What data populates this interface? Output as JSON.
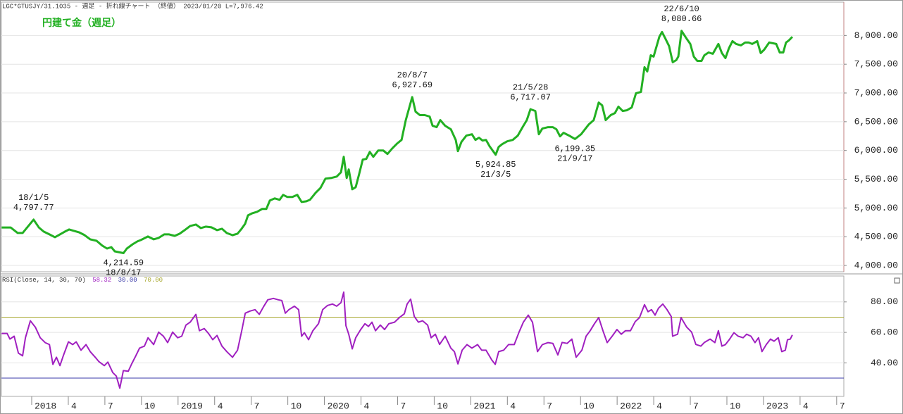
{
  "chart_data": [
    {
      "type": "line",
      "header": "LGC*GTUSJY/31.1035 - 週足 - 折れ線チャート （終値）  2023/01/20 L=7,976.42",
      "title": "円建て金（週足）",
      "color": "#22b022",
      "xlim": [
        2017.793,
        2023.549
      ],
      "ylim": [
        3890,
        8580
      ],
      "grid": true,
      "yticks": [
        {
          "value": 4000,
          "label": "4,000.00"
        },
        {
          "value": 4500,
          "label": "4,500.00"
        },
        {
          "value": 5000,
          "label": "5,000.00"
        },
        {
          "value": 5500,
          "label": "5,500.00"
        },
        {
          "value": 6000,
          "label": "6,000.00"
        },
        {
          "value": 6500,
          "label": "6,500.00"
        },
        {
          "value": 7000,
          "label": "7,000.00"
        },
        {
          "value": 7500,
          "label": "7,500.00"
        },
        {
          "value": 8000,
          "label": "8,000.00"
        }
      ],
      "x": [
        2017.794,
        2017.856,
        2017.904,
        2017.938,
        2018.013,
        2018.049,
        2018.082,
        2018.121,
        2018.159,
        2018.193,
        2018.227,
        2018.256,
        2018.289,
        2018.323,
        2018.361,
        2018.4,
        2018.443,
        2018.482,
        2018.515,
        2018.544,
        2018.568,
        2018.627,
        2018.65,
        2018.689,
        2018.722,
        2018.746,
        2018.794,
        2018.833,
        2018.867,
        2018.905,
        2018.939,
        2018.977,
        2019.011,
        2019.045,
        2019.083,
        2019.122,
        2019.155,
        2019.189,
        2019.228,
        2019.266,
        2019.3,
        2019.333,
        2019.372,
        2019.406,
        2019.434,
        2019.458,
        2019.478,
        2019.507,
        2019.54,
        2019.574,
        2019.603,
        2019.627,
        2019.661,
        2019.694,
        2019.718,
        2019.747,
        2019.781,
        2019.815,
        2019.844,
        2019.877,
        2019.901,
        2019.94,
        2019.973,
        2020.007,
        2020.046,
        2020.084,
        2020.113,
        2020.132,
        2020.152,
        2020.166,
        2020.19,
        2020.214,
        2020.238,
        2020.262,
        2020.286,
        2020.31,
        2020.334,
        2020.368,
        2020.402,
        2020.431,
        2020.464,
        2020.498,
        2020.527,
        2020.556,
        2020.6,
        2020.623,
        2020.652,
        2020.686,
        2020.719,
        2020.739,
        2020.767,
        2020.792,
        2020.825,
        2020.864,
        2020.897,
        2020.912,
        2020.936,
        2020.97,
        2021.008,
        2021.032,
        2021.056,
        2021.08,
        2021.104,
        2021.128,
        2021.17,
        2021.191,
        2021.215,
        2021.249,
        2021.287,
        2021.321,
        2021.354,
        2021.383,
        2021.408,
        2021.441,
        2021.465,
        2021.489,
        2021.528,
        2021.561,
        2021.585,
        2021.61,
        2021.634,
        2021.672,
        2021.712,
        2021.754,
        2021.807,
        2021.84,
        2021.874,
        2021.898,
        2021.922,
        2021.956,
        2021.985,
        2022.009,
        2022.038,
        2022.067,
        2022.1,
        2022.129,
        2022.163,
        2022.187,
        2022.206,
        2022.23,
        2022.249,
        2022.288,
        2022.307,
        2022.331,
        2022.355,
        2022.38,
        2022.404,
        2022.418,
        2022.44,
        2022.476,
        2022.5,
        2022.524,
        2022.548,
        2022.577,
        2022.596,
        2022.625,
        2022.654,
        2022.692,
        2022.716,
        2022.74,
        2022.764,
        2022.788,
        2022.813,
        2022.846,
        2022.875,
        2022.899,
        2022.923,
        2022.957,
        2022.981,
        2023.005,
        2023.039,
        2023.087,
        2023.111,
        2023.135,
        2023.154,
        2023.173,
        2023.197
      ],
      "values": [
        4660,
        4660,
        4565,
        4565,
        4797.77,
        4660,
        4589,
        4540,
        4491,
        4540,
        4589,
        4626,
        4601,
        4577,
        4528,
        4454,
        4429,
        4344,
        4294,
        4319,
        4245,
        4214.59,
        4294,
        4368,
        4418,
        4442,
        4503,
        4454,
        4479,
        4540,
        4540,
        4515,
        4552,
        4614,
        4687,
        4712,
        4650,
        4675,
        4663,
        4614,
        4638,
        4564,
        4527,
        4552,
        4638,
        4724,
        4871,
        4908,
        4933,
        4982,
        4982,
        5129,
        5166,
        5141,
        5227,
        5190,
        5190,
        5227,
        5104,
        5116,
        5141,
        5264,
        5349,
        5509,
        5521,
        5546,
        5620,
        5890,
        5521,
        5669,
        5325,
        5362,
        5595,
        5841,
        5853,
        5976,
        5890,
        6000,
        6000,
        5939,
        6037,
        6123,
        6184,
        6528,
        6927.69,
        6675,
        6614,
        6614,
        6589,
        6430,
        6405,
        6528,
        6430,
        6368,
        6184,
        5988,
        6148,
        6258,
        6282,
        6184,
        6221,
        6172,
        6184,
        6074,
        5924.85,
        6061,
        6110,
        6159,
        6184,
        6258,
        6405,
        6528,
        6717.07,
        6687,
        6282,
        6381,
        6405,
        6405,
        6368,
        6245,
        6307,
        6258,
        6199.35,
        6282,
        6454,
        6528,
        6834,
        6785,
        6528,
        6614,
        6650,
        6761,
        6687,
        6699,
        6748,
        6994,
        7018,
        7448,
        7374,
        7656,
        7632,
        7975,
        8061,
        7939,
        7816,
        7534,
        7571,
        7632,
        8080.66,
        7939,
        7853,
        7632,
        7558,
        7558,
        7656,
        7705,
        7681,
        7853,
        7693,
        7607,
        7779,
        7902,
        7853,
        7828,
        7877,
        7877,
        7853,
        7902,
        7693,
        7754,
        7877,
        7853,
        7705,
        7705,
        7877,
        7914,
        7976
      ],
      "annotations": [
        {
          "x": 2018.013,
          "value": 4797.77,
          "date": "18/1/5",
          "label": "4,797.77",
          "position": "above"
        },
        {
          "x": 2018.627,
          "value": 4214.59,
          "date": "18/8/17",
          "label": "4,214.59",
          "position": "below"
        },
        {
          "x": 2020.6,
          "value": 6927.69,
          "date": "20/8/7",
          "label": "6,927.69",
          "position": "above"
        },
        {
          "x": 2021.17,
          "value": 5924.85,
          "date": "21/3/5",
          "label": "5,924.85",
          "position": "below"
        },
        {
          "x": 2021.408,
          "value": 6717.07,
          "date": "21/5/28",
          "label": "6,717.07",
          "position": "above"
        },
        {
          "x": 2021.712,
          "value": 6199.35,
          "date": "21/9/17",
          "label": "6,199.35",
          "position": "below"
        },
        {
          "x": 2022.44,
          "value": 8080.66,
          "date": "22/6/10",
          "label": "8,080.66",
          "position": "above"
        }
      ]
    },
    {
      "type": "line",
      "indicator_label": "RSI(Close, 14, 30, 70)",
      "last_label": "58.32",
      "low_label": "30.00",
      "high_label": "70.00",
      "color": "#a020c0",
      "levels": [
        {
          "value": 30,
          "color": "#3a3aa8"
        },
        {
          "value": 70,
          "color": "#a8a830"
        }
      ],
      "xlim": [
        2017.793,
        2023.549
      ],
      "ylim": [
        18,
        97
      ],
      "grid": true,
      "yticks": [
        {
          "value": 40,
          "label": "40.00"
        },
        {
          "value": 60,
          "label": "60.00"
        },
        {
          "value": 80,
          "label": "80.00"
        }
      ],
      "xticks": [
        2018,
        {
          "value": 2018.25,
          "label": "4"
        },
        {
          "value": 2018.5,
          "label": "7"
        },
        {
          "value": 2018.75,
          "label": "10"
        },
        2019,
        {
          "value": 2019.25,
          "label": "4"
        },
        {
          "value": 2019.5,
          "label": "7"
        },
        {
          "value": 2019.75,
          "label": "10"
        },
        2020,
        {
          "value": 2020.25,
          "label": "4"
        },
        {
          "value": 2020.5,
          "label": "7"
        },
        {
          "value": 2020.75,
          "label": "10"
        },
        2021,
        {
          "value": 2021.25,
          "label": "4"
        },
        {
          "value": 2021.5,
          "label": "7"
        },
        {
          "value": 2021.75,
          "label": "10"
        },
        2022,
        {
          "value": 2022.25,
          "label": "4"
        },
        {
          "value": 2022.5,
          "label": "7"
        },
        {
          "value": 2022.75,
          "label": "10"
        },
        2023,
        {
          "value": 2023.25,
          "label": "4"
        },
        {
          "value": 2023.5,
          "label": "7"
        }
      ],
      "x": [
        2017.794,
        2017.832,
        2017.851,
        2017.88,
        2017.909,
        2017.938,
        2017.957,
        2017.991,
        2018.025,
        2018.058,
        2018.092,
        2018.121,
        2018.145,
        2018.169,
        2018.193,
        2018.217,
        2018.251,
        2018.28,
        2018.304,
        2018.337,
        2018.371,
        2018.4,
        2018.434,
        2018.458,
        2018.496,
        2018.52,
        2018.554,
        2018.578,
        2018.602,
        2018.626,
        2018.66,
        2018.684,
        2018.713,
        2018.737,
        2018.77,
        2018.795,
        2018.833,
        2018.867,
        2018.9,
        2018.929,
        2018.963,
        2018.997,
        2019.025,
        2019.054,
        2019.083,
        2019.122,
        2019.146,
        2019.179,
        2019.208,
        2019.237,
        2019.266,
        2019.3,
        2019.333,
        2019.372,
        2019.406,
        2019.435,
        2019.459,
        2019.492,
        2019.526,
        2019.555,
        2019.584,
        2019.613,
        2019.651,
        2019.685,
        2019.709,
        2019.733,
        2019.757,
        2019.795,
        2019.824,
        2019.844,
        2019.863,
        2019.892,
        2019.921,
        2019.959,
        2019.988,
        2020.022,
        2020.055,
        2020.084,
        2020.113,
        2020.132,
        2020.147,
        2020.166,
        2020.19,
        2020.214,
        2020.248,
        2020.277,
        2020.301,
        2020.325,
        2020.349,
        2020.382,
        2020.411,
        2020.44,
        2020.479,
        2020.512,
        2020.546,
        2020.565,
        2020.589,
        2020.614,
        2020.642,
        2020.671,
        2020.705,
        2020.729,
        2020.758,
        2020.787,
        2020.825,
        2020.864,
        2020.888,
        2020.912,
        2020.941,
        2020.974,
        2021.008,
        2021.047,
        2021.075,
        2021.104,
        2021.143,
        2021.167,
        2021.191,
        2021.225,
        2021.258,
        2021.297,
        2021.33,
        2021.359,
        2021.393,
        2021.422,
        2021.456,
        2021.489,
        2021.528,
        2021.561,
        2021.595,
        2021.624,
        2021.658,
        2021.691,
        2021.72,
        2021.759,
        2021.788,
        2021.816,
        2021.845,
        2021.874,
        2021.903,
        2021.932,
        2021.966,
        2021.999,
        2022.028,
        2022.057,
        2022.091,
        2022.124,
        2022.153,
        2022.187,
        2022.211,
        2022.235,
        2022.259,
        2022.283,
        2022.312,
        2022.341,
        2022.37,
        2022.379,
        2022.413,
        2022.437,
        2022.476,
        2022.509,
        2022.538,
        2022.572,
        2022.596,
        2022.635,
        2022.668,
        2022.692,
        2022.716,
        2022.74,
        2022.769,
        2022.798,
        2022.827,
        2022.861,
        2022.885,
        2022.914,
        2022.942,
        2022.966,
        2022.99,
        2023.019,
        2023.048,
        2023.072,
        2023.101,
        2023.125,
        2023.149,
        2023.164,
        2023.183,
        2023.197
      ],
      "values": [
        59.3,
        59.3,
        55.6,
        57.5,
        46.4,
        44.6,
        56.5,
        67.6,
        63.4,
        56.5,
        53.3,
        52,
        39,
        43.7,
        38.2,
        45,
        53.8,
        52,
        53.8,
        48.3,
        52,
        47.4,
        43.7,
        40.9,
        38.2,
        40.5,
        33.6,
        31.3,
        23.4,
        34.9,
        34.5,
        39.5,
        45,
        49.7,
        51,
        56.5,
        52,
        60.2,
        57.5,
        53.3,
        60.2,
        56.5,
        57.5,
        64.8,
        66.7,
        71.8,
        61.1,
        62.5,
        59.3,
        55.2,
        58,
        51,
        47.4,
        43.7,
        48.3,
        61.1,
        72.6,
        74,
        74.9,
        71.8,
        76.8,
        81.4,
        82.3,
        81.4,
        80.9,
        72.6,
        74.9,
        77.2,
        74.9,
        57.5,
        59.8,
        55.2,
        61.1,
        65.7,
        74.9,
        77.7,
        78.6,
        77.2,
        79.5,
        86.4,
        64.4,
        58.8,
        49.2,
        56.5,
        61.9,
        65.7,
        63.9,
        66.7,
        61.1,
        64.8,
        61.9,
        65.7,
        66.7,
        69.7,
        72.2,
        78.6,
        81.8,
        70.4,
        66.7,
        67.6,
        64.8,
        56.5,
        58.8,
        52.1,
        57.5,
        49.7,
        47.4,
        39.3,
        48.3,
        52,
        49.7,
        52,
        48.3,
        48.3,
        42,
        39,
        47.4,
        48.3,
        52,
        52,
        60.2,
        66.7,
        71.3,
        66.7,
        47.4,
        52,
        53.3,
        52.8,
        45.2,
        53.4,
        52.8,
        55.6,
        43.7,
        48.3,
        57.5,
        61.1,
        65.7,
        69.7,
        61.1,
        53.3,
        57.5,
        61.9,
        58.8,
        61.1,
        61.1,
        67.1,
        69.7,
        78.2,
        73.6,
        74.9,
        71.3,
        75.9,
        78.6,
        74.9,
        70.4,
        57.5,
        58.8,
        69.7,
        63.4,
        60.2,
        52.1,
        51,
        53.4,
        55.6,
        53.3,
        61.1,
        51,
        52,
        55.6,
        59.8,
        57.5,
        56.5,
        58.8,
        57.5,
        53.3,
        56.5,
        47.4,
        52,
        55.6,
        54.2,
        56.5,
        47.4,
        48.3,
        55.2,
        55.6,
        58.32
      ]
    }
  ]
}
